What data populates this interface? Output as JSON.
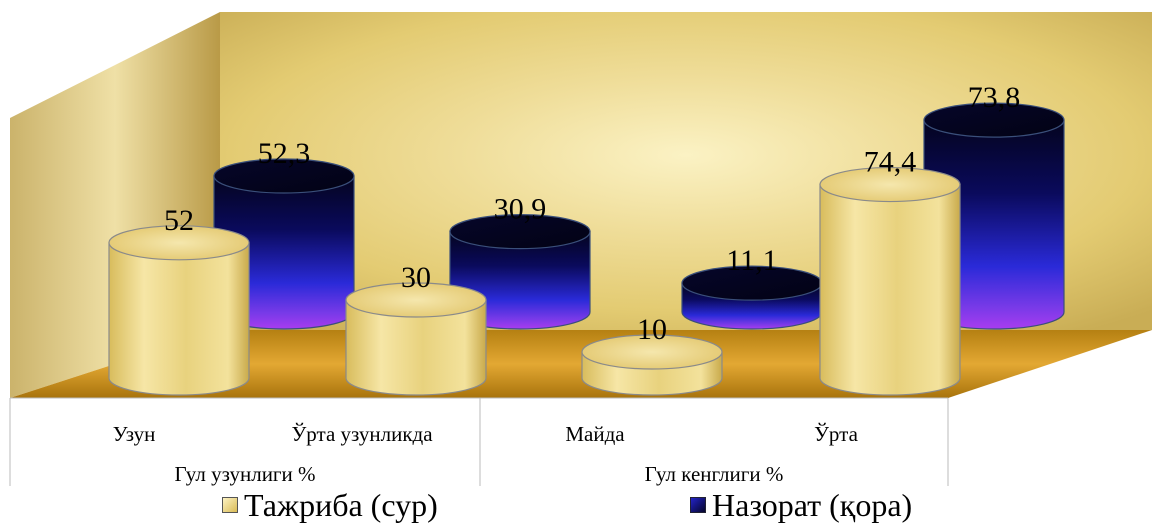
{
  "chart_data": {
    "type": "bar",
    "style": "3d-cylinder",
    "groups": [
      {
        "label": "Гул узунлиги %",
        "categories": [
          "Узун",
          "Ўрта узунликда"
        ]
      },
      {
        "label": "Гул кенглиги %",
        "categories": [
          "Майда",
          "Ўрта"
        ]
      }
    ],
    "categories": [
      "Узун",
      "Ўрта узунликда",
      "Майда",
      "Ўрта"
    ],
    "series": [
      {
        "name": "Тажриба (сур)",
        "color": "#e6cc6a",
        "values": [
          52,
          30,
          10,
          74.4
        ],
        "labels": [
          "52",
          "30",
          "10",
          "74,4"
        ]
      },
      {
        "name": "Назорат (қора)",
        "color": "#1a1a8c",
        "values": [
          52.3,
          30.9,
          11.1,
          73.8
        ],
        "labels": [
          "52,3",
          "30,9",
          "11,1",
          "73,8"
        ]
      }
    ],
    "legend": "bottom",
    "grid": false
  }
}
